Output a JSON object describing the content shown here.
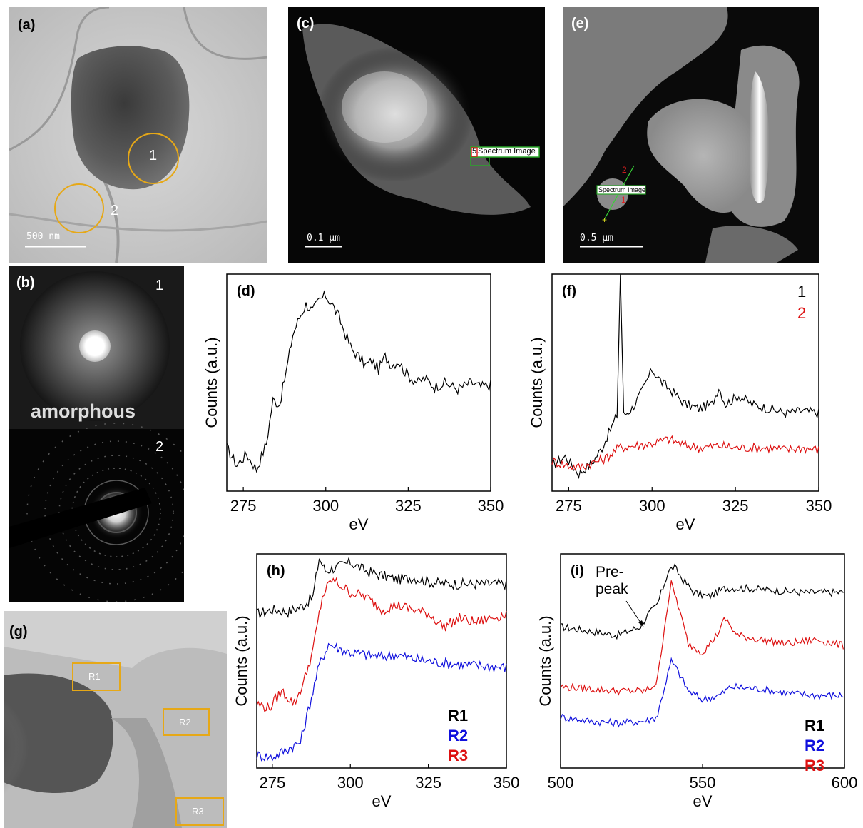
{
  "panels": {
    "a": {
      "label": "(a)",
      "scale_bar": "500 nm",
      "markers": [
        "1",
        "2"
      ]
    },
    "b": {
      "label": "(b)",
      "top_index": "1",
      "top_caption": "amorphous",
      "bottom_index": "2"
    },
    "c": {
      "label": "(c)",
      "scale_bar": "0.1 µm",
      "si_label": "Spectrum Image",
      "si_index": "5"
    },
    "e": {
      "label": "(e)",
      "scale_bar": "0.5 µm",
      "si_label": "Spectrum Image",
      "line_end_1": "1",
      "line_end_2": "2"
    },
    "g": {
      "label": "(g)",
      "regions": [
        "R1",
        "R2",
        "R3"
      ]
    },
    "d": {
      "label": "(d)"
    },
    "f": {
      "label": "(f)"
    },
    "h": {
      "label": "(h)"
    },
    "i": {
      "label": "(i)",
      "annotation": "Pre-\npeak"
    }
  },
  "colors": {
    "black": "#000000",
    "red": "#dd1111",
    "blue": "#1111dd",
    "gold": "#e6a817"
  },
  "chart_data": [
    {
      "id": "d",
      "type": "line",
      "title": "",
      "xlabel": "eV",
      "ylabel": "Counts (a.u.)",
      "xlim": [
        270,
        350
      ],
      "xticks": [
        275,
        300,
        325,
        350
      ],
      "series": [
        {
          "values": [
            [
              270,
              0.2
            ],
            [
              273,
              0.12
            ],
            [
              276,
              0.17
            ],
            [
              279,
              0.1
            ],
            [
              282,
              0.22
            ],
            [
              284,
              0.42
            ],
            [
              286,
              0.4
            ],
            [
              288,
              0.55
            ],
            [
              290,
              0.72
            ],
            [
              292,
              0.8
            ],
            [
              294,
              0.86
            ],
            [
              296,
              0.83
            ],
            [
              298,
              0.88
            ],
            [
              300,
              0.9
            ],
            [
              302,
              0.86
            ],
            [
              304,
              0.8
            ],
            [
              306,
              0.72
            ],
            [
              308,
              0.65
            ],
            [
              310,
              0.62
            ],
            [
              312,
              0.58
            ],
            [
              314,
              0.6
            ],
            [
              316,
              0.56
            ],
            [
              318,
              0.62
            ],
            [
              320,
              0.58
            ],
            [
              322,
              0.6
            ],
            [
              324,
              0.55
            ],
            [
              326,
              0.52
            ],
            [
              328,
              0.5
            ],
            [
              330,
              0.52
            ],
            [
              333,
              0.48
            ],
            [
              336,
              0.5
            ],
            [
              340,
              0.47
            ],
            [
              344,
              0.5
            ],
            [
              347,
              0.48
            ],
            [
              350,
              0.49
            ]
          ]
        }
      ]
    },
    {
      "id": "f",
      "type": "line",
      "title": "",
      "xlabel": "eV",
      "ylabel": "Counts (a.u.)",
      "xlim": [
        270,
        350
      ],
      "xticks": [
        275,
        300,
        325,
        350
      ],
      "legend": [
        "1",
        "2"
      ],
      "series": [
        {
          "name": "1",
          "values": [
            [
              270,
              0.12
            ],
            [
              274,
              0.16
            ],
            [
              278,
              0.08
            ],
            [
              282,
              0.13
            ],
            [
              285,
              0.2
            ],
            [
              288,
              0.3
            ],
            [
              289.5,
              0.35
            ],
            [
              290.5,
              1.0
            ],
            [
              291.5,
              0.35
            ],
            [
              294,
              0.38
            ],
            [
              297,
              0.46
            ],
            [
              300,
              0.56
            ],
            [
              303,
              0.5
            ],
            [
              306,
              0.46
            ],
            [
              310,
              0.4
            ],
            [
              314,
              0.38
            ],
            [
              318,
              0.4
            ],
            [
              320,
              0.48
            ],
            [
              322,
              0.4
            ],
            [
              326,
              0.44
            ],
            [
              330,
              0.4
            ],
            [
              335,
              0.38
            ],
            [
              340,
              0.36
            ],
            [
              345,
              0.37
            ],
            [
              350,
              0.36
            ]
          ]
        },
        {
          "name": "2",
          "values": [
            [
              270,
              0.14
            ],
            [
              274,
              0.12
            ],
            [
              278,
              0.11
            ],
            [
              282,
              0.13
            ],
            [
              286,
              0.15
            ],
            [
              290,
              0.2
            ],
            [
              295,
              0.21
            ],
            [
              300,
              0.22
            ],
            [
              305,
              0.24
            ],
            [
              310,
              0.21
            ],
            [
              315,
              0.2
            ],
            [
              320,
              0.21
            ],
            [
              325,
              0.2
            ],
            [
              330,
              0.2
            ],
            [
              335,
              0.2
            ],
            [
              340,
              0.19
            ],
            [
              345,
              0.2
            ],
            [
              350,
              0.19
            ]
          ]
        }
      ]
    },
    {
      "id": "h",
      "type": "line",
      "title": "",
      "xlabel": "eV",
      "ylabel": "Counts (a.u.)",
      "xlim": [
        270,
        350
      ],
      "xticks": [
        275,
        300,
        325,
        350
      ],
      "legend": [
        "R1",
        "R2",
        "R3"
      ],
      "series": [
        {
          "name": "R1",
          "color": "#000000",
          "values": [
            [
              270,
              0.72
            ],
            [
              275,
              0.74
            ],
            [
              280,
              0.73
            ],
            [
              285,
              0.76
            ],
            [
              288,
              0.8
            ],
            [
              290,
              0.98
            ],
            [
              292,
              0.92
            ],
            [
              296,
              0.94
            ],
            [
              300,
              0.96
            ],
            [
              305,
              0.92
            ],
            [
              310,
              0.9
            ],
            [
              315,
              0.88
            ],
            [
              320,
              0.89
            ],
            [
              325,
              0.87
            ],
            [
              330,
              0.86
            ],
            [
              340,
              0.86
            ],
            [
              350,
              0.86
            ]
          ]
        },
        {
          "name": "R2",
          "color": "#1111dd",
          "values": [
            [
              270,
              0.06
            ],
            [
              275,
              0.05
            ],
            [
              280,
              0.09
            ],
            [
              284,
              0.12
            ],
            [
              287,
              0.3
            ],
            [
              290,
              0.48
            ],
            [
              293,
              0.58
            ],
            [
              296,
              0.56
            ],
            [
              300,
              0.54
            ],
            [
              305,
              0.53
            ],
            [
              310,
              0.52
            ],
            [
              315,
              0.53
            ],
            [
              320,
              0.51
            ],
            [
              325,
              0.5
            ],
            [
              330,
              0.49
            ],
            [
              340,
              0.48
            ],
            [
              350,
              0.47
            ]
          ]
        },
        {
          "name": "R3",
          "color": "#dd1111",
          "values": [
            [
              270,
              0.3
            ],
            [
              274,
              0.28
            ],
            [
              278,
              0.36
            ],
            [
              282,
              0.3
            ],
            [
              285,
              0.4
            ],
            [
              288,
              0.55
            ],
            [
              291,
              0.8
            ],
            [
              294,
              0.88
            ],
            [
              297,
              0.85
            ],
            [
              300,
              0.82
            ],
            [
              305,
              0.8
            ],
            [
              310,
              0.74
            ],
            [
              315,
              0.76
            ],
            [
              320,
              0.74
            ],
            [
              325,
              0.72
            ],
            [
              330,
              0.66
            ],
            [
              335,
              0.7
            ],
            [
              340,
              0.68
            ],
            [
              345,
              0.7
            ],
            [
              350,
              0.72
            ]
          ]
        }
      ]
    },
    {
      "id": "i",
      "type": "line",
      "title": "",
      "xlabel": "eV",
      "ylabel": "Counts (a.u.)",
      "xlim": [
        500,
        600
      ],
      "xticks": [
        500,
        550,
        600
      ],
      "legend": [
        "R1",
        "R2",
        "R3"
      ],
      "series": [
        {
          "name": "R1",
          "color": "#000000",
          "values": [
            [
              500,
              0.66
            ],
            [
              510,
              0.64
            ],
            [
              520,
              0.62
            ],
            [
              528,
              0.66
            ],
            [
              531,
              0.72
            ],
            [
              534,
              0.76
            ],
            [
              538,
              0.92
            ],
            [
              540,
              0.94
            ],
            [
              543,
              0.88
            ],
            [
              547,
              0.82
            ],
            [
              552,
              0.8
            ],
            [
              558,
              0.84
            ],
            [
              565,
              0.84
            ],
            [
              575,
              0.83
            ],
            [
              585,
              0.82
            ],
            [
              595,
              0.82
            ],
            [
              600,
              0.82
            ]
          ]
        },
        {
          "name": "R2",
          "color": "#1111dd",
          "values": [
            [
              500,
              0.24
            ],
            [
              510,
              0.22
            ],
            [
              520,
              0.21
            ],
            [
              530,
              0.22
            ],
            [
              534,
              0.24
            ],
            [
              537,
              0.4
            ],
            [
              539,
              0.5
            ],
            [
              541,
              0.46
            ],
            [
              545,
              0.36
            ],
            [
              550,
              0.32
            ],
            [
              556,
              0.34
            ],
            [
              560,
              0.38
            ],
            [
              570,
              0.37
            ],
            [
              580,
              0.35
            ],
            [
              590,
              0.34
            ],
            [
              600,
              0.34
            ]
          ]
        },
        {
          "name": "R3",
          "color": "#dd1111",
          "values": [
            [
              500,
              0.38
            ],
            [
              510,
              0.37
            ],
            [
              520,
              0.36
            ],
            [
              530,
              0.36
            ],
            [
              534,
              0.4
            ],
            [
              537,
              0.7
            ],
            [
              539,
              0.86
            ],
            [
              541,
              0.78
            ],
            [
              545,
              0.58
            ],
            [
              550,
              0.54
            ],
            [
              555,
              0.62
            ],
            [
              558,
              0.7
            ],
            [
              562,
              0.62
            ],
            [
              570,
              0.6
            ],
            [
              580,
              0.58
            ],
            [
              590,
              0.6
            ],
            [
              600,
              0.57
            ]
          ]
        }
      ]
    }
  ]
}
